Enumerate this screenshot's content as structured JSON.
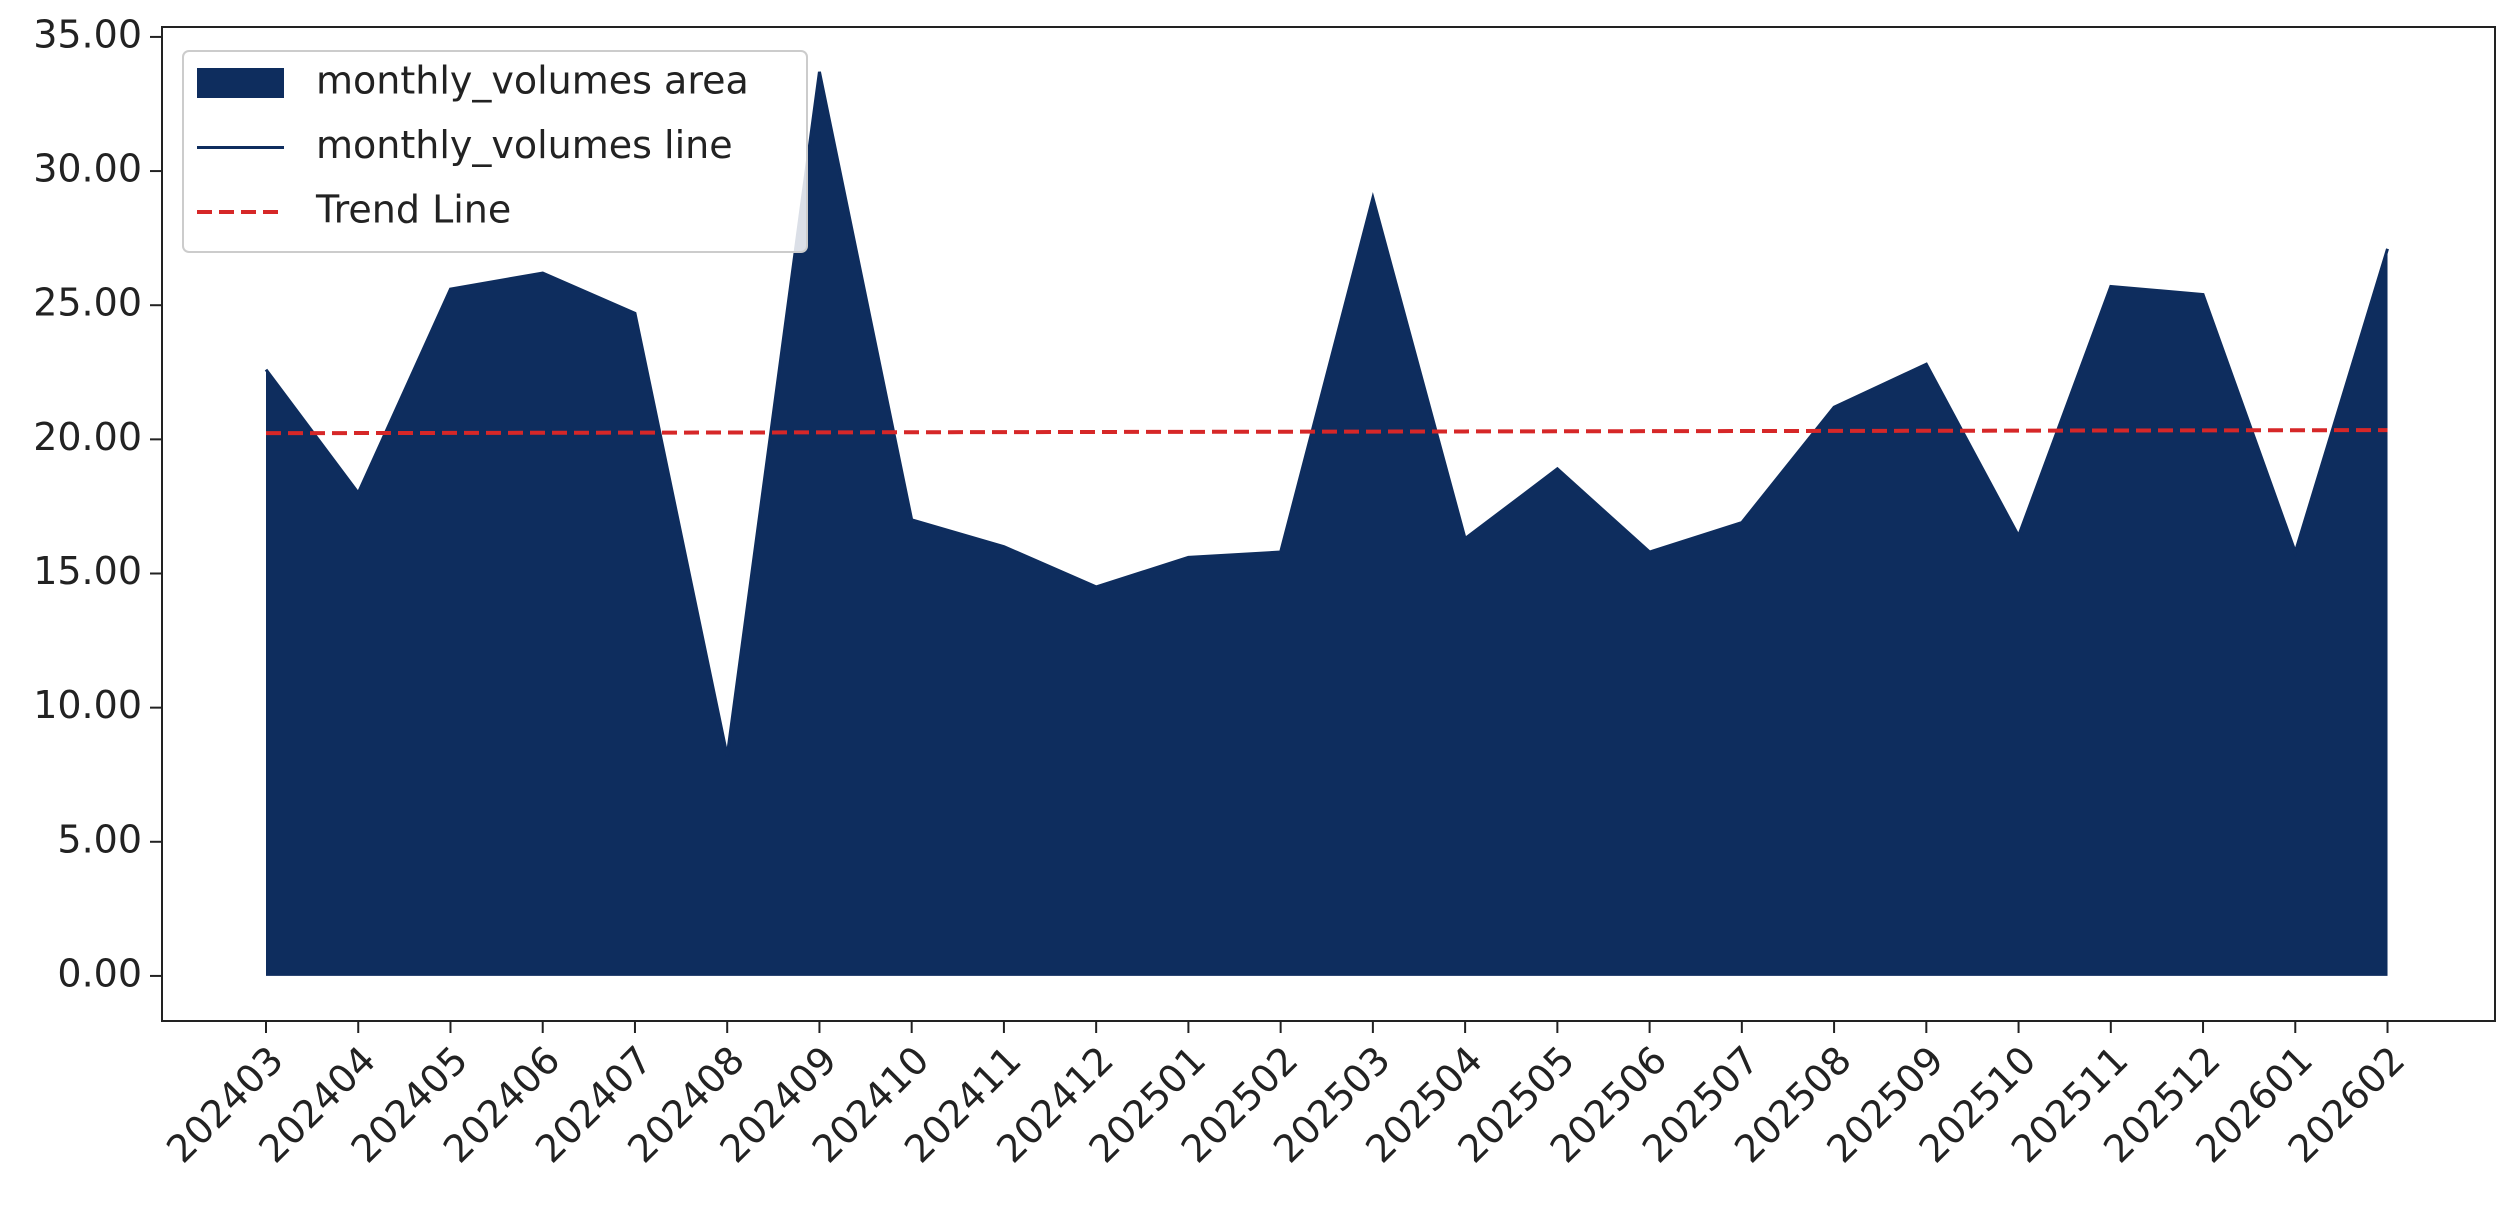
{
  "chart_data": {
    "type": "area",
    "categories": [
      "202403",
      "202404",
      "202405",
      "202406",
      "202407",
      "202408",
      "202409",
      "202410",
      "202411",
      "202412",
      "202501",
      "202502",
      "202503",
      "202504",
      "202505",
      "202506",
      "202507",
      "202508",
      "202509",
      "202510",
      "202511",
      "202512",
      "202601",
      "202602"
    ],
    "series": [
      {
        "name": "monthly_volumes area",
        "color": "#0e2d5e",
        "kind": "area",
        "values": [
          22.6,
          18.0,
          25.6,
          26.2,
          24.7,
          8.2,
          33.7,
          17.0,
          16.0,
          14.5,
          15.6,
          15.8,
          29.0,
          16.3,
          18.9,
          15.8,
          16.9,
          21.2,
          22.8,
          16.4,
          25.7,
          25.4,
          15.8,
          27.1
        ]
      },
      {
        "name": "monthly_volumes line",
        "color": "#0e2d5e",
        "kind": "line",
        "values": [
          22.6,
          18.0,
          25.6,
          26.2,
          24.7,
          8.2,
          33.7,
          17.0,
          16.0,
          14.5,
          15.6,
          15.8,
          29.0,
          16.3,
          18.9,
          15.8,
          16.9,
          21.2,
          22.8,
          16.4,
          25.7,
          25.4,
          15.8,
          27.1
        ]
      },
      {
        "name": "Trend Line",
        "color": "#d62728",
        "kind": "dashed",
        "values": [
          20.23,
          20.235,
          20.24,
          20.245,
          20.25,
          20.255,
          20.26,
          20.265,
          20.27,
          20.275,
          20.28,
          20.285,
          20.29,
          20.295,
          20.3,
          20.305,
          20.31,
          20.315,
          20.32,
          20.325,
          20.33,
          20.335,
          20.34,
          20.345
        ]
      }
    ],
    "ylim": [
      -1.68,
      35.37
    ],
    "yticks": [
      {
        "value": 0,
        "label": "0.00"
      },
      {
        "value": 5,
        "label": "5.00"
      },
      {
        "value": 10,
        "label": "10.00"
      },
      {
        "value": 15,
        "label": "15.00"
      },
      {
        "value": 20,
        "label": "20.00"
      },
      {
        "value": 25,
        "label": "25.00"
      },
      {
        "value": 30,
        "label": "30.00"
      },
      {
        "value": 35,
        "label": "35.00"
      }
    ],
    "legend": "upper left",
    "grid": false
  }
}
